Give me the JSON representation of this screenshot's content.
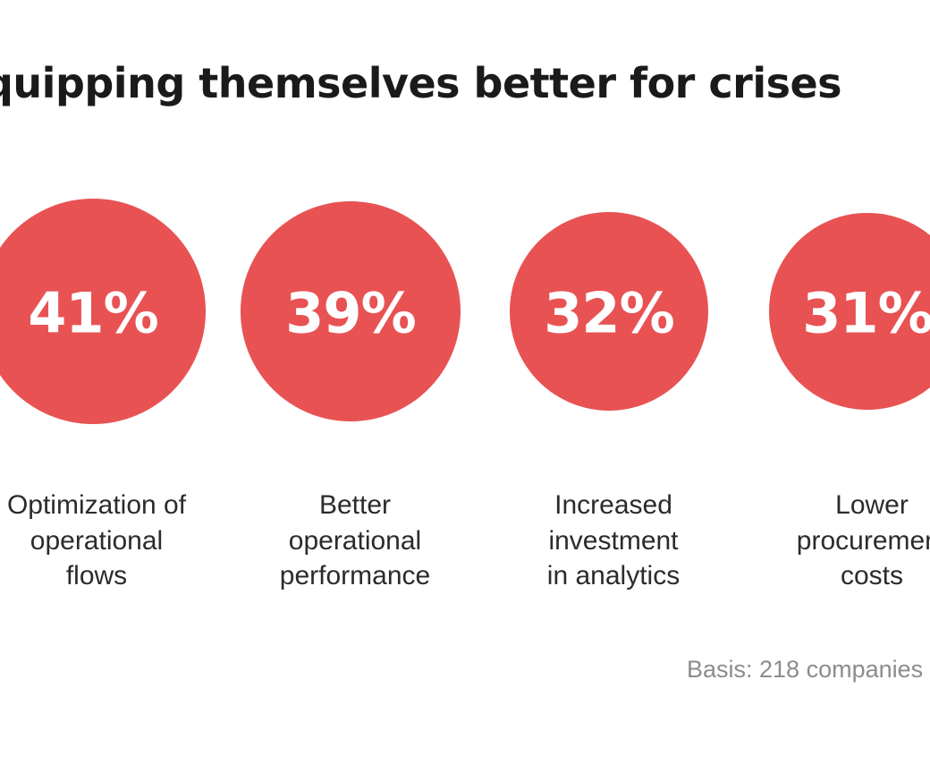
{
  "title": "quipping themselves better for crises",
  "basis": "Basis: 218 companies",
  "colors": {
    "circle": "#e85253",
    "value_text": "#ffffff",
    "title": "#1a1a1a",
    "label": "#2b2b2b",
    "basis": "#8c8c8c"
  },
  "chart_data": {
    "type": "bar",
    "title": "quipping themselves better for crises",
    "unit": "%",
    "categories": [
      "Optimization of operational flows",
      "Better operational performance",
      "Increased investment in analytics",
      "Lower procurement costs"
    ],
    "values": [
      41,
      39,
      32,
      31
    ],
    "value_labels": [
      "41%",
      "39%",
      "32%",
      "31%"
    ],
    "category_labels": [
      "Optimization of\noperational\nflows",
      "Better\noperational\nperformance",
      "Increased\ninvestment\nin analytics",
      "Lower\nprocurement\ncosts"
    ],
    "encoding": "circle area proportional to value",
    "legend": "none",
    "grid": false
  }
}
